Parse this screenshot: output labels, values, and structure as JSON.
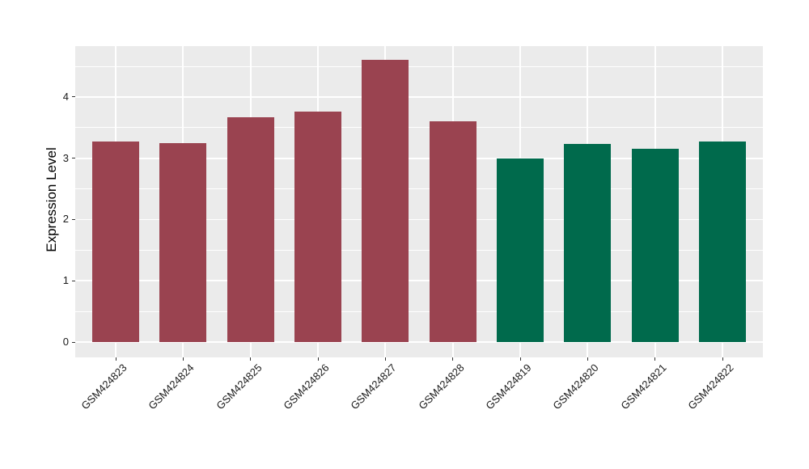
{
  "figure": {
    "background": "#FFFFFF",
    "panel_background": "#EBEBEB",
    "gridline_color": "#FFFFFF",
    "tick_mark_color": "#333333",
    "tick_label_color": "#1A1A1A",
    "axis_title_color": "#000000"
  },
  "chart_data": {
    "type": "bar",
    "title": "",
    "xlabel": "",
    "ylabel": "Expression Level",
    "categories": [
      "GSM424823",
      "GSM424824",
      "GSM424825",
      "GSM424826",
      "GSM424827",
      "GSM424828",
      "GSM424819",
      "GSM424820",
      "GSM424821",
      "GSM424822"
    ],
    "values": [
      3.27,
      3.25,
      3.67,
      3.76,
      4.61,
      3.6,
      2.99,
      3.23,
      3.15,
      3.27
    ],
    "bar_colors": [
      "#9A4350",
      "#9A4350",
      "#9A4350",
      "#9A4350",
      "#9A4350",
      "#9A4350",
      "#006A4C",
      "#006A4C",
      "#006A4C",
      "#006A4C"
    ],
    "group_color_red": "#9A4350",
    "group_color_green": "#006A4C",
    "ylim": [
      -0.25,
      4.83
    ],
    "yticks_major": [
      0,
      1,
      2,
      3,
      4
    ],
    "yticks_minor": [
      0.5,
      1.5,
      2.5,
      3.5,
      4.5
    ],
    "grid": true,
    "legend_position": "none",
    "x_label_rotation_deg": 45,
    "bar_width_fraction": 0.7
  }
}
